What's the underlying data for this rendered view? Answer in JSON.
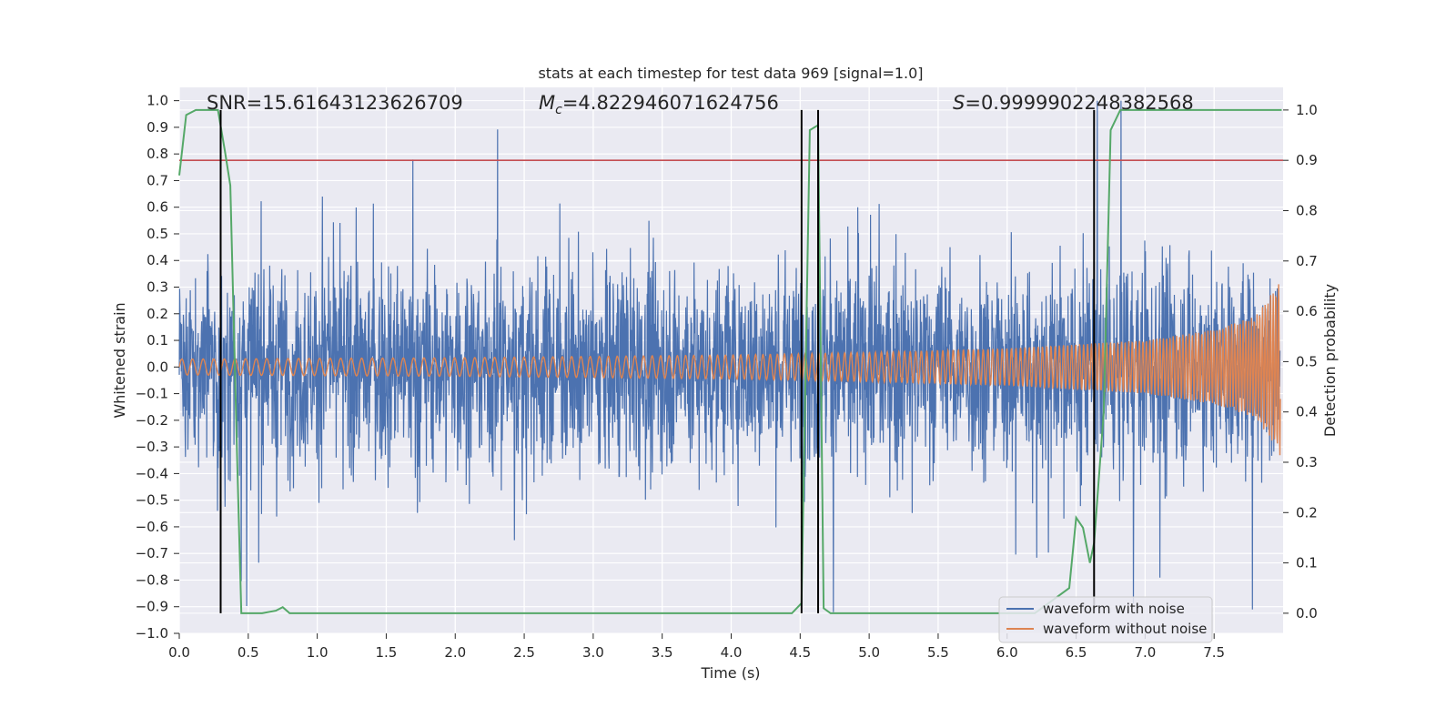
{
  "chart_data": {
    "type": "line",
    "title": "stats at each timestep for test data 969 [signal=1.0]",
    "xlabel": "Time (s)",
    "ylabel": "Whitened strain",
    "y2label": "Detection probability",
    "xlim": [
      0.0,
      8.0
    ],
    "ylim": [
      -1.0,
      1.05
    ],
    "y2lim": [
      -0.04,
      1.045
    ],
    "x_ticks": [
      "0.0",
      "0.5",
      "1.0",
      "1.5",
      "2.0",
      "2.5",
      "3.0",
      "3.5",
      "4.0",
      "4.5",
      "5.0",
      "5.5",
      "6.0",
      "6.5",
      "7.0",
      "7.5"
    ],
    "y_ticks": [
      "1.0",
      "0.9",
      "0.8",
      "0.7",
      "0.6",
      "0.5",
      "0.4",
      "0.3",
      "0.2",
      "0.1",
      "0.0",
      "−0.1",
      "−0.2",
      "−0.3",
      "−0.4",
      "−0.5",
      "−0.6",
      "−0.7",
      "−0.8",
      "−0.9",
      "−1.0"
    ],
    "y2_ticks": [
      "1.0",
      "0.9",
      "0.8",
      "0.7",
      "0.6",
      "0.5",
      "0.4",
      "0.3",
      "0.2",
      "0.1",
      "0.0"
    ],
    "annotations": {
      "snr": "SNR=15.61643123626709",
      "mc_symbol": "M",
      "mc_sub": "c",
      "mc_value": "=4.822946071624756",
      "s_symbol": "S",
      "s_value": "=0.9999902248382568"
    },
    "threshold": {
      "value": 0.9,
      "axis": "right",
      "color": "#c44e52"
    },
    "vertical_markers": [
      0.3,
      4.51,
      4.63,
      6.63
    ],
    "series": [
      {
        "name": "waveform with noise",
        "color": "#4c72b0",
        "axis": "left",
        "description": "whitened noisy strain, roughly within ±0.55 with peaks near ±0.9"
      },
      {
        "name": "waveform without noise",
        "color": "#dd8452",
        "axis": "left",
        "envelope": {
          "t": [
            0,
            2,
            4,
            5,
            6,
            6.5,
            7,
            7.5,
            7.8,
            7.95,
            8.0
          ],
          "amp": [
            0.03,
            0.035,
            0.045,
            0.055,
            0.07,
            0.085,
            0.1,
            0.14,
            0.19,
            0.3,
            0.37
          ]
        }
      },
      {
        "name": "detection probability",
        "color": "#55a868",
        "axis": "right",
        "x": [
          0.0,
          0.05,
          0.12,
          0.28,
          0.33,
          0.37,
          0.42,
          0.45,
          0.6,
          0.7,
          0.75,
          0.8,
          1.0,
          2.0,
          3.0,
          4.0,
          4.44,
          4.51,
          4.57,
          4.63,
          4.67,
          4.72,
          4.8,
          5.5,
          6.2,
          6.45,
          6.5,
          6.55,
          6.6,
          6.63,
          6.7,
          6.75,
          6.82,
          7.0,
          7.5,
          7.99
        ],
        "y": [
          0.87,
          0.99,
          1.0,
          1.0,
          0.92,
          0.85,
          0.3,
          0.0,
          0.0,
          0.005,
          0.012,
          0.0,
          0.0,
          0.0,
          0.0,
          0.0,
          0.0,
          0.02,
          0.96,
          0.97,
          0.01,
          0.0,
          0.0,
          0.0,
          0.0,
          0.05,
          0.19,
          0.17,
          0.1,
          0.14,
          0.4,
          0.96,
          1.0,
          1.0,
          1.0,
          1.0
        ]
      }
    ],
    "legend": {
      "location": "lower-right",
      "entries": [
        {
          "label": "waveform with noise",
          "color": "#4c72b0"
        },
        {
          "label": "waveform without noise",
          "color": "#dd8452"
        }
      ]
    }
  }
}
